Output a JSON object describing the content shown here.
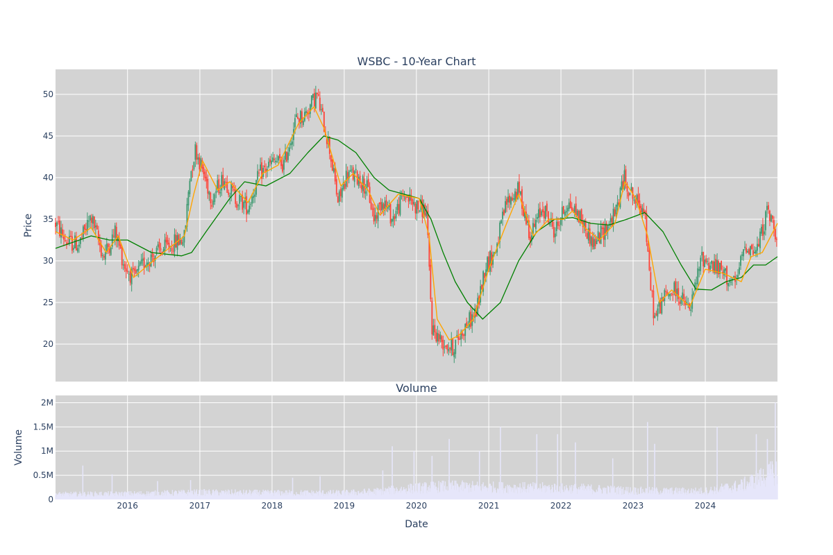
{
  "chart_data": [
    {
      "type": "candlestick",
      "title": "WSBC - 10-Year Chart",
      "xlabel": "",
      "ylabel": "Price",
      "ylim": [
        15.5,
        53
      ],
      "y_ticks": [
        20,
        25,
        30,
        35,
        40,
        45,
        50
      ],
      "x_ticks": [
        "2016",
        "2017",
        "2018",
        "2019",
        "2020",
        "2021",
        "2022",
        "2023",
        "2024"
      ],
      "x_range": [
        "2015-01-02",
        "2024-12-31"
      ],
      "grid": true,
      "colors": {
        "up": "#3d9970",
        "down": "#ff4136",
        "ma_short": "#ffa500",
        "ma_long": "#008000",
        "plot_bg": "#d3d3d3",
        "grid": "#ffffff"
      },
      "series": [
        {
          "type": "candlestick",
          "anchors": [
            [
              "2015-01-02",
              34.5
            ],
            [
              "2015-03-01",
              32.2
            ],
            [
              "2015-05-01",
              32.0
            ],
            [
              "2015-07-01",
              35.3
            ],
            [
              "2015-09-01",
              30.5
            ],
            [
              "2015-11-01",
              33.5
            ],
            [
              "2015-12-15",
              29.5
            ],
            [
              "2016-02-01",
              27.8
            ],
            [
              "2016-04-01",
              30.0
            ],
            [
              "2016-06-01",
              31.0
            ],
            [
              "2016-08-01",
              31.8
            ],
            [
              "2016-10-15",
              32.8
            ],
            [
              "2016-11-10",
              40.0
            ],
            [
              "2016-12-10",
              43.5
            ],
            [
              "2017-03-01",
              37.5
            ],
            [
              "2017-05-01",
              40.0
            ],
            [
              "2017-07-01",
              37.5
            ],
            [
              "2017-09-01",
              36.5
            ],
            [
              "2017-11-01",
              40.5
            ],
            [
              "2018-01-15",
              42.0
            ],
            [
              "2018-03-01",
              41.5
            ],
            [
              "2018-05-01",
              47.0
            ],
            [
              "2018-06-15",
              47.5
            ],
            [
              "2018-08-15",
              50.0
            ],
            [
              "2018-10-15",
              44.0
            ],
            [
              "2018-12-01",
              37.0
            ],
            [
              "2019-01-15",
              40.5
            ],
            [
              "2019-03-15",
              40.0
            ],
            [
              "2019-05-01",
              38.5
            ],
            [
              "2019-06-01",
              35.0
            ],
            [
              "2019-07-15",
              37.5
            ],
            [
              "2019-09-01",
              35.0
            ],
            [
              "2019-11-01",
              38.0
            ],
            [
              "2020-01-01",
              36.5
            ],
            [
              "2020-02-20",
              36.0
            ],
            [
              "2020-03-20",
              22.0
            ],
            [
              "2020-05-01",
              20.5
            ],
            [
              "2020-07-01",
              19.5
            ],
            [
              "2020-09-01",
              22.0
            ],
            [
              "2020-11-01",
              24.0
            ],
            [
              "2020-12-15",
              29.5
            ],
            [
              "2021-02-01",
              31.0
            ],
            [
              "2021-04-01",
              37.0
            ],
            [
              "2021-06-01",
              38.5
            ],
            [
              "2021-08-01",
              33.0
            ],
            [
              "2021-10-01",
              36.5
            ],
            [
              "2021-12-01",
              33.5
            ],
            [
              "2022-02-01",
              37.0
            ],
            [
              "2022-04-01",
              35.5
            ],
            [
              "2022-06-15",
              32.0
            ],
            [
              "2022-08-01",
              33.5
            ],
            [
              "2022-10-01",
              35.5
            ],
            [
              "2022-11-15",
              40.0
            ],
            [
              "2023-01-15",
              37.0
            ],
            [
              "2023-02-28",
              36.5
            ],
            [
              "2023-03-20",
              29.0
            ],
            [
              "2023-04-20",
              23.0
            ],
            [
              "2023-06-01",
              25.5
            ],
            [
              "2023-08-01",
              26.5
            ],
            [
              "2023-10-15",
              24.0
            ],
            [
              "2023-12-15",
              30.5
            ],
            [
              "2024-02-01",
              29.5
            ],
            [
              "2024-04-01",
              28.5
            ],
            [
              "2024-06-01",
              27.0
            ],
            [
              "2024-07-20",
              32.0
            ],
            [
              "2024-09-15",
              31.0
            ],
            [
              "2024-11-10",
              36.0
            ],
            [
              "2024-12-31",
              33.0
            ]
          ]
        },
        {
          "type": "line",
          "points": [
            [
              "2015-01-02",
              33.5
            ],
            [
              "2015-04-01",
              32.5
            ],
            [
              "2015-07-01",
              34.0
            ],
            [
              "2015-09-15",
              31.0
            ],
            [
              "2015-11-15",
              33.0
            ],
            [
              "2016-02-01",
              28.0
            ],
            [
              "2016-04-15",
              29.5
            ],
            [
              "2016-07-01",
              31.0
            ],
            [
              "2016-10-15",
              33.0
            ],
            [
              "2016-12-01",
              38.0
            ],
            [
              "2017-01-15",
              42.0
            ],
            [
              "2017-04-01",
              38.5
            ],
            [
              "2017-06-01",
              39.5
            ],
            [
              "2017-09-01",
              37.0
            ],
            [
              "2017-11-15",
              40.5
            ],
            [
              "2018-02-01",
              41.5
            ],
            [
              "2018-05-15",
              46.5
            ],
            [
              "2018-08-01",
              48.5
            ],
            [
              "2018-09-20",
              46.0
            ],
            [
              "2018-12-15",
              39.0
            ],
            [
              "2019-02-15",
              40.5
            ],
            [
              "2019-05-01",
              38.5
            ],
            [
              "2019-07-01",
              35.5
            ],
            [
              "2019-10-01",
              38.0
            ],
            [
              "2020-01-15",
              37.5
            ],
            [
              "2020-03-05",
              33.0
            ],
            [
              "2020-04-15",
              23.0
            ],
            [
              "2020-06-15",
              20.5
            ],
            [
              "2020-08-01",
              21.0
            ],
            [
              "2020-10-15",
              23.0
            ],
            [
              "2021-01-01",
              29.0
            ],
            [
              "2021-04-01",
              34.5
            ],
            [
              "2021-06-01",
              38.0
            ],
            [
              "2021-08-15",
              33.0
            ],
            [
              "2021-11-01",
              35.0
            ],
            [
              "2022-01-15",
              35.0
            ],
            [
              "2022-03-01",
              36.0
            ],
            [
              "2022-05-01",
              34.0
            ],
            [
              "2022-07-15",
              32.5
            ],
            [
              "2022-10-01",
              34.5
            ],
            [
              "2022-11-20",
              39.5
            ],
            [
              "2023-01-15",
              37.5
            ],
            [
              "2023-03-15",
              33.0
            ],
            [
              "2023-05-15",
              25.0
            ],
            [
              "2023-07-15",
              26.5
            ],
            [
              "2023-10-15",
              24.5
            ],
            [
              "2024-01-01",
              29.0
            ],
            [
              "2024-04-01",
              28.5
            ],
            [
              "2024-07-01",
              27.5
            ],
            [
              "2024-08-20",
              30.5
            ],
            [
              "2024-10-15",
              31.0
            ],
            [
              "2024-12-31",
              34.5
            ]
          ]
        },
        {
          "type": "line",
          "points": [
            [
              "2015-01-02",
              31.5
            ],
            [
              "2015-07-01",
              33.0
            ],
            [
              "2015-10-01",
              32.5
            ],
            [
              "2016-01-01",
              32.5
            ],
            [
              "2016-05-01",
              31.0
            ],
            [
              "2016-10-01",
              30.6
            ],
            [
              "2016-11-20",
              31.0
            ],
            [
              "2017-02-01",
              33.5
            ],
            [
              "2017-06-01",
              37.5
            ],
            [
              "2017-08-15",
              39.5
            ],
            [
              "2017-12-01",
              39.0
            ],
            [
              "2018-04-01",
              40.5
            ],
            [
              "2018-07-01",
              43.0
            ],
            [
              "2018-09-20",
              45.0
            ],
            [
              "2018-12-01",
              44.5
            ],
            [
              "2019-03-01",
              43.0
            ],
            [
              "2019-06-01",
              40.0
            ],
            [
              "2019-08-15",
              38.5
            ],
            [
              "2019-11-01",
              38.0
            ],
            [
              "2020-01-15",
              37.5
            ],
            [
              "2020-03-15",
              35.0
            ],
            [
              "2020-05-15",
              31.0
            ],
            [
              "2020-07-15",
              27.5
            ],
            [
              "2020-09-15",
              25.0
            ],
            [
              "2020-12-01",
              23.0
            ],
            [
              "2021-03-01",
              25.0
            ],
            [
              "2021-06-01",
              30.0
            ],
            [
              "2021-09-01",
              33.5
            ],
            [
              "2021-12-01",
              35.0
            ],
            [
              "2022-03-01",
              35.2
            ],
            [
              "2022-06-01",
              34.5
            ],
            [
              "2022-09-01",
              34.3
            ],
            [
              "2022-12-01",
              35.0
            ],
            [
              "2023-03-01",
              35.8
            ],
            [
              "2023-06-01",
              33.5
            ],
            [
              "2023-09-01",
              29.5
            ],
            [
              "2023-11-15",
              26.6
            ],
            [
              "2024-02-01",
              26.5
            ],
            [
              "2024-04-15",
              27.5
            ],
            [
              "2024-07-01",
              28.0
            ],
            [
              "2024-09-01",
              29.5
            ],
            [
              "2024-11-01",
              29.5
            ],
            [
              "2024-12-31",
              30.5
            ]
          ]
        }
      ]
    },
    {
      "type": "bar",
      "title": "Volume",
      "xlabel": "Date",
      "ylabel": "Volume",
      "ylim": [
        0,
        2150000
      ],
      "y_ticks": [
        0,
        500000,
        1000000,
        1500000,
        2000000
      ],
      "y_tick_labels": [
        "0",
        "0.5M",
        "1M",
        "1.5M",
        "2M"
      ],
      "x_ticks": [
        "2016",
        "2017",
        "2018",
        "2019",
        "2020",
        "2021",
        "2022",
        "2023",
        "2024"
      ],
      "grid": true,
      "colors": {
        "bar": "#e6e6fa",
        "plot_bg": "#d3d3d3"
      },
      "baseline": [
        [
          "2015-01-02",
          120000
        ],
        [
          "2016-01-01",
          130000
        ],
        [
          "2017-01-01",
          160000
        ],
        [
          "2018-01-01",
          150000
        ],
        [
          "2019-01-01",
          150000
        ],
        [
          "2019-06-01",
          180000
        ],
        [
          "2020-01-01",
          260000
        ],
        [
          "2020-06-01",
          300000
        ],
        [
          "2021-01-01",
          280000
        ],
        [
          "2022-01-01",
          260000
        ],
        [
          "2022-06-01",
          240000
        ],
        [
          "2023-01-01",
          200000
        ],
        [
          "2023-06-01",
          190000
        ],
        [
          "2024-01-01",
          190000
        ],
        [
          "2024-07-01",
          320000
        ],
        [
          "2024-12-31",
          650000
        ]
      ],
      "spikes": [
        [
          "2015-05-20",
          700000
        ],
        [
          "2015-10-15",
          520000
        ],
        [
          "2016-06-01",
          380000
        ],
        [
          "2016-11-15",
          400000
        ],
        [
          "2018-04-15",
          450000
        ],
        [
          "2018-09-01",
          480000
        ],
        [
          "2019-07-15",
          600000
        ],
        [
          "2019-09-01",
          1100000
        ],
        [
          "2019-12-20",
          1000000
        ],
        [
          "2020-03-20",
          900000
        ],
        [
          "2020-06-15",
          1250000
        ],
        [
          "2020-11-15",
          1000000
        ],
        [
          "2021-03-01",
          1500000
        ],
        [
          "2021-09-01",
          1350000
        ],
        [
          "2021-12-15",
          1350000
        ],
        [
          "2022-03-15",
          1180000
        ],
        [
          "2022-09-20",
          850000
        ],
        [
          "2023-03-15",
          1600000
        ],
        [
          "2023-04-20",
          1150000
        ],
        [
          "2024-03-01",
          1500000
        ],
        [
          "2024-09-15",
          1350000
        ],
        [
          "2024-11-10",
          1250000
        ],
        [
          "2024-12-20",
          2000000
        ]
      ]
    }
  ]
}
